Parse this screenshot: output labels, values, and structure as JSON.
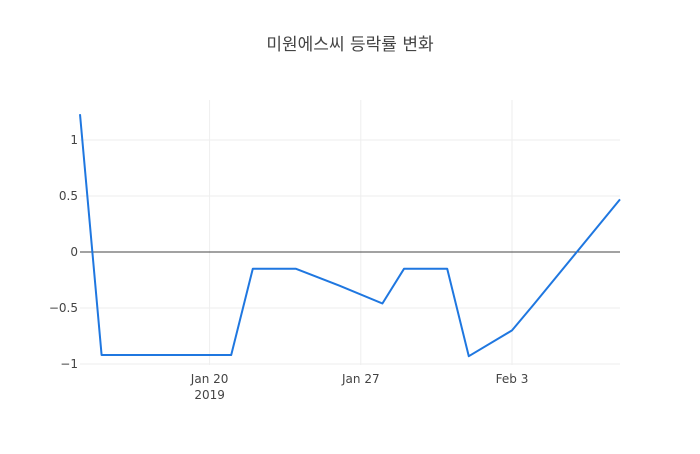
{
  "chart_data": {
    "type": "line",
    "title": "미원에스씨 등락률 변화",
    "xlabel": "",
    "ylabel": "",
    "x": [
      "2019-01-14",
      "2019-01-15",
      "2019-01-16",
      "2019-01-17",
      "2019-01-18",
      "2019-01-21",
      "2019-01-22",
      "2019-01-23",
      "2019-01-24",
      "2019-01-25",
      "2019-01-28",
      "2019-01-29",
      "2019-01-30",
      "2019-01-31",
      "2019-02-01",
      "2019-02-07",
      "2019-02-08"
    ],
    "xlim": [
      "2019-01-14",
      "2019-02-08"
    ],
    "ylim": [
      -1.0,
      1.25
    ],
    "x_ticks": [
      {
        "date": "2019-01-20",
        "label": "Jan 20",
        "sublabel": "2019"
      },
      {
        "date": "2019-01-27",
        "label": "Jan 27",
        "sublabel": ""
      },
      {
        "date": "2019-02-03",
        "label": "Feb 3",
        "sublabel": ""
      }
    ],
    "y_ticks": [
      {
        "value": 1,
        "label": "1"
      },
      {
        "value": 0.5,
        "label": "0.5"
      },
      {
        "value": 0,
        "label": "0"
      },
      {
        "value": -0.5,
        "label": "−0.5"
      },
      {
        "value": -1,
        "label": "−1"
      }
    ],
    "series": [
      {
        "values": [
          1.23,
          -0.92,
          -0.92,
          -0.92,
          -0.92,
          -0.92,
          -0.15,
          -0.15,
          -0.3,
          -0.46,
          -0.15,
          -0.15,
          -0.93,
          -0.7,
          -0.47,
          0.47
        ],
        "x": [
          "2019-01-14",
          "2019-01-15",
          "2019-01-16",
          "2019-01-17",
          "2019-01-18",
          "2019-01-21",
          "2019-01-22",
          "2019-01-24",
          "2019-01-26",
          "2019-01-28",
          "2019-01-29",
          "2019-01-31",
          "2019-02-01",
          "2019-02-03",
          "2019-02-04",
          "2019-02-08"
        ],
        "color": "#1f77e0"
      }
    ],
    "grid": true,
    "legend": "none",
    "zero_line": true
  }
}
